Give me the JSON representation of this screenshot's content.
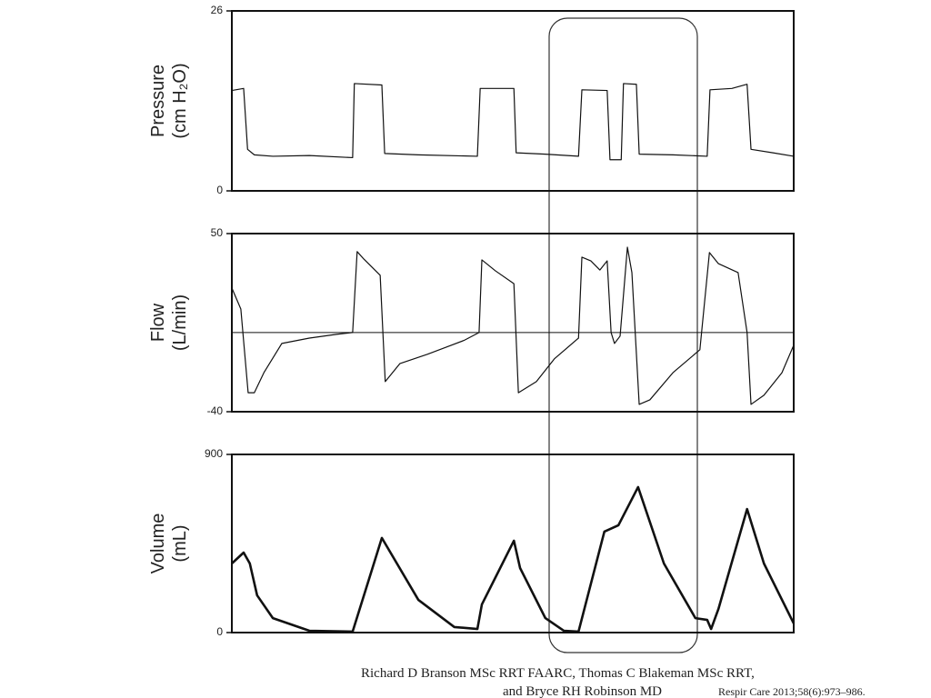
{
  "chart_data": [
    {
      "type": "line",
      "ylabel": [
        "Pressure",
        "(cm H₂O)"
      ],
      "ylim": [
        0,
        26
      ],
      "yticks": [
        0,
        26
      ],
      "xlim": [
        0,
        100
      ],
      "x": [
        0,
        2.1,
        2.8,
        4.0,
        7.3,
        13.8,
        21.5,
        21.8,
        26.7,
        27.2,
        33.2,
        43.7,
        44.2,
        50.2,
        50.6,
        55.8,
        61.7,
        62.3,
        66.8,
        67.3,
        69.3,
        69.7,
        72.0,
        72.5,
        78.5,
        84.6,
        85.1,
        89.0,
        91.7,
        92.4,
        96.3,
        100
      ],
      "series": [
        {
          "color": "#111111",
          "values": [
            14.5,
            14.8,
            6,
            5.2,
            5.0,
            5.1,
            4.8,
            15.5,
            15.3,
            5.4,
            5.2,
            5.0,
            14.8,
            14.8,
            5.5,
            5.3,
            5.0,
            14.6,
            14.5,
            4.5,
            4.5,
            15.5,
            15.4,
            5.3,
            5.2,
            5.0,
            14.6,
            14.8,
            15.4,
            6.0,
            5.5,
            5.0
          ]
        }
      ]
    },
    {
      "type": "line",
      "ylabel": [
        "Flow",
        "(L/min)"
      ],
      "ylim": [
        -40,
        50
      ],
      "yticks": [
        -40,
        50
      ],
      "xlim": [
        0,
        100
      ],
      "zero_line": true,
      "x": [
        0,
        1.6,
        2.9,
        4.0,
        5.7,
        8.9,
        13.8,
        18.6,
        21.4,
        21.5,
        22.3,
        23.5,
        26.4,
        27.3,
        29.9,
        34.8,
        41.3,
        44.0,
        44.5,
        46.9,
        50.2,
        51.0,
        54.2,
        57.4,
        61.7,
        62.3,
        63.9,
        65.5,
        66.8,
        67.5,
        68.1,
        69.1,
        70.4,
        71.2,
        72.5,
        74.4,
        78.5,
        83.3,
        85.0,
        86.6,
        90.1,
        91.7,
        92.4,
        94.7,
        97.9,
        100
      ],
      "series": [
        {
          "color": "#111111",
          "values": [
            22.5,
            11.9,
            -30.4,
            -30.4,
            -20.3,
            -5.5,
            -2.8,
            -0.9,
            0,
            0,
            40.9,
            37.1,
            28.9,
            -24.8,
            -15.7,
            -11,
            -4,
            0,
            36.7,
            31.2,
            24.7,
            -30.4,
            -24.8,
            -13.3,
            -2.8,
            38.1,
            36.2,
            31.6,
            36.2,
            0,
            -5.5,
            -1.8,
            43.1,
            30.3,
            -36.3,
            -34,
            -20.3,
            -8.7,
            40.4,
            34.8,
            30.3,
            0,
            -36.3,
            -31.7,
            -20.3,
            -6.4
          ]
        }
      ]
    },
    {
      "type": "line",
      "ylabel": [
        "Volume",
        "(mL)"
      ],
      "ylim": [
        0,
        900
      ],
      "yticks": [
        0,
        900
      ],
      "xlim": [
        0,
        100
      ],
      "x": [
        0,
        2.1,
        3.2,
        4.5,
        7.3,
        13.8,
        21.5,
        26.7,
        33.2,
        39.6,
        43.7,
        44.5,
        50.2,
        51.3,
        55.8,
        59.1,
        61.7,
        66.3,
        68.8,
        72.3,
        76.9,
        82.5,
        84.6,
        85.3,
        86.6,
        91.7,
        94.7,
        100
      ],
      "series": [
        {
          "color": "#111111",
          "values": [
            349,
            404,
            349,
            188,
            73,
            9,
            5,
            478,
            165,
            28,
            18,
            142,
            464,
            326,
            73,
            9,
            5,
            510,
            542,
            735,
            349,
            73,
            64,
            18,
            119,
            624,
            349,
            46
          ]
        }
      ]
    }
  ],
  "citation": {
    "authors": [
      "Richard D Branson MSc RRT FAARC, Thomas C Blakeman MSc RRT,",
      "and Bryce RH Robinson MD"
    ],
    "reference": "Respir Care 2013;58(6):973–986."
  }
}
